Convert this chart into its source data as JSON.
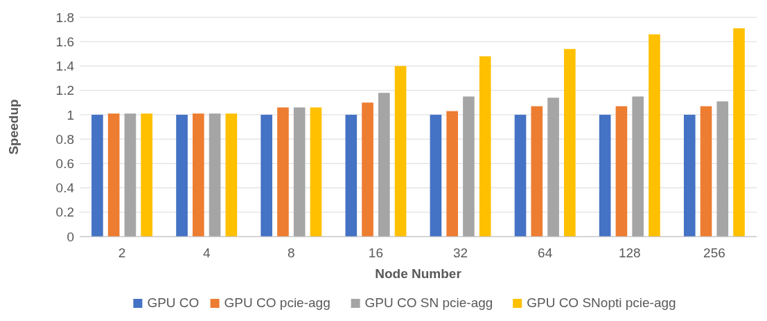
{
  "chart_data": {
    "type": "bar",
    "xlabel": "Node Number",
    "ylabel": "Speedup",
    "categories": [
      "2",
      "4",
      "8",
      "16",
      "32",
      "64",
      "128",
      "256"
    ],
    "series": [
      {
        "name": "GPU CO",
        "color": "#4472c4",
        "values": [
          1,
          1,
          1,
          1,
          1,
          1,
          1,
          1
        ]
      },
      {
        "name": "GPU CO pcie-agg",
        "color": "#ed7d31",
        "values": [
          1.01,
          1.01,
          1.06,
          1.1,
          1.03,
          1.07,
          1.07,
          1.07
        ]
      },
      {
        "name": "GPU CO SN pcie-agg",
        "color": "#a5a5a5",
        "values": [
          1.01,
          1.01,
          1.06,
          1.18,
          1.15,
          1.14,
          1.15,
          1.11
        ]
      },
      {
        "name": "GPU CO SNopti pcie-agg",
        "color": "#ffc000",
        "values": [
          1.01,
          1.01,
          1.06,
          1.4,
          1.48,
          1.54,
          1.66,
          1.71
        ]
      }
    ],
    "ylim": [
      0,
      1.8
    ],
    "yticks": [
      0,
      0.2,
      0.4,
      0.6,
      0.8,
      1,
      1.2,
      1.4,
      1.6,
      1.8
    ],
    "grid": "y",
    "legend": "bottom"
  }
}
